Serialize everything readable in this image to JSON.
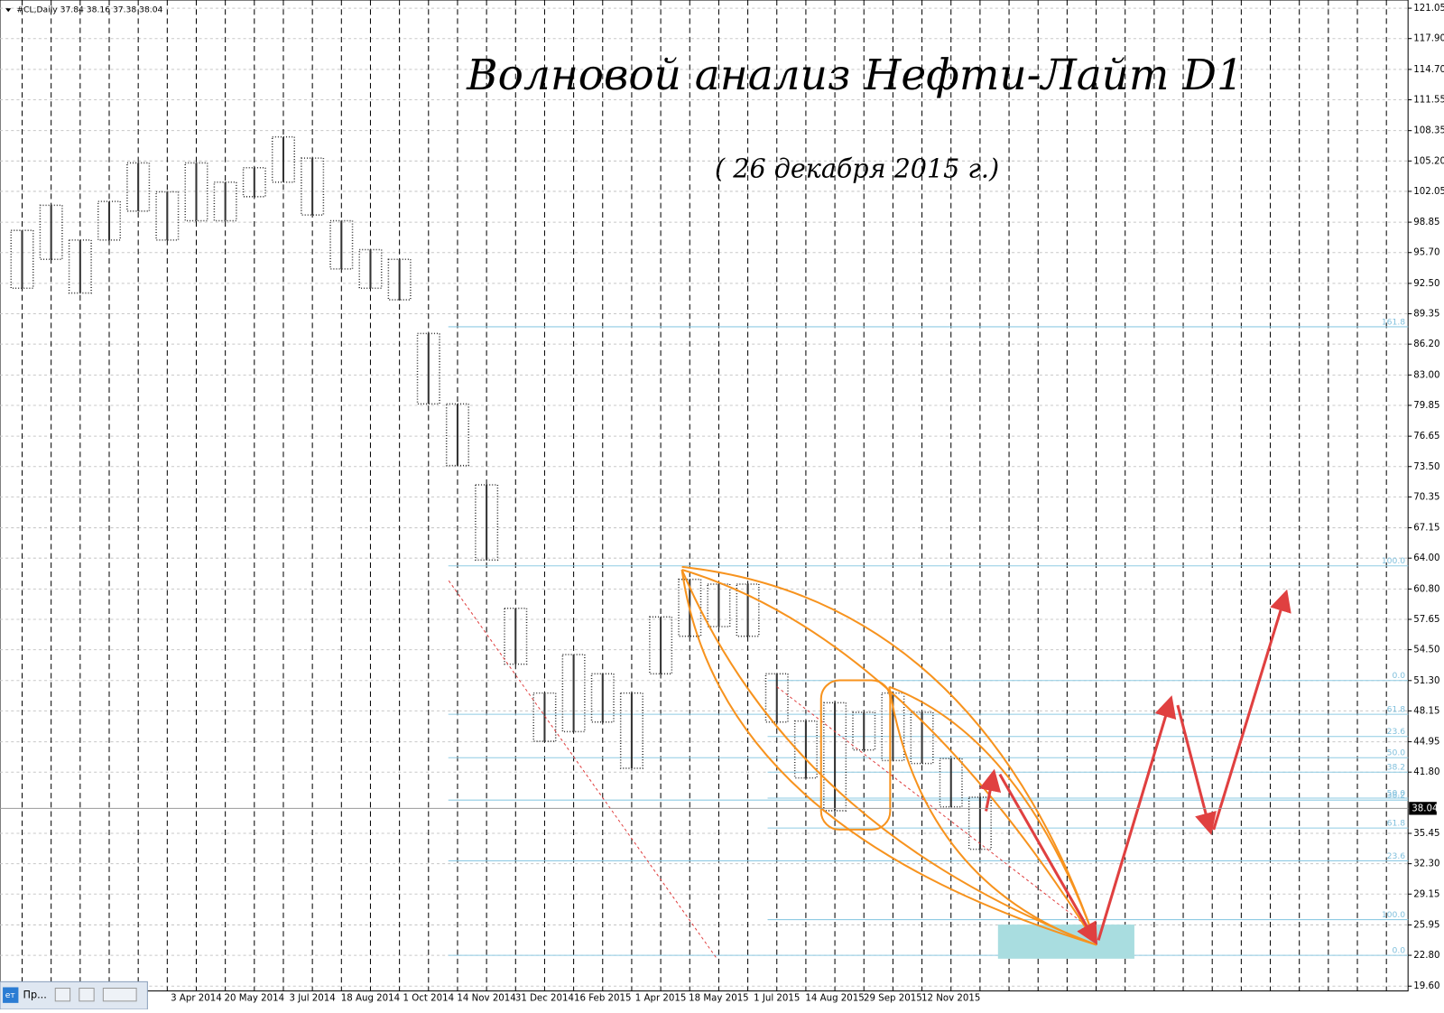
{
  "chart_data": {
    "type": "ohlc",
    "header": "#CL,Daily  37.84 38.16 37.38 38.04",
    "title": "Волновой анализ Нефти-Лайт D1",
    "subtitle": "( 26 декабря 2015 г.)",
    "categories": [
      null,
      null,
      null,
      null,
      null,
      null,
      "3 Apr 2014",
      null,
      "20 May 2014",
      null,
      "3 Jul 2014",
      null,
      "18 Aug 2014",
      null,
      "1 Oct 2014",
      null,
      "14 Nov 2014",
      null,
      "31 Dec 2014",
      null,
      "16 Feb 2015",
      null,
      "1 Apr 2015",
      null,
      "18 May 2015",
      null,
      "1 Jul 2015",
      null,
      "14 Aug 2015",
      null,
      "29 Sep 2015",
      null,
      "12 Nov 2015",
      null,
      null,
      null,
      null,
      null,
      null,
      null,
      null,
      null,
      null,
      null,
      null,
      null,
      null,
      null
    ],
    "series": [
      {
        "name": "high",
        "color": "#333333",
        "values": [
          98,
          100.6,
          97,
          101,
          105,
          102,
          105,
          103,
          104.5,
          107.7,
          105.5,
          99,
          96,
          95,
          87.3,
          80,
          71.6,
          58.8,
          50,
          54,
          52,
          50,
          57.9,
          61.8,
          61.3,
          61.3,
          52,
          47.1,
          49,
          48,
          50,
          48,
          43.2,
          39.2,
          null,
          null,
          null,
          null,
          null,
          null,
          null,
          null,
          null,
          null,
          null,
          null,
          null,
          null
        ]
      },
      {
        "name": "low",
        "color": "#333333",
        "values": [
          92,
          95,
          91.5,
          97,
          100,
          97,
          99,
          99,
          101.5,
          103,
          99.6,
          94,
          92,
          90.8,
          80,
          73.6,
          63.8,
          53,
          45,
          46,
          47,
          42.2,
          52,
          55.9,
          56.9,
          55.9,
          47,
          41.2,
          37.8,
          44.1,
          43,
          42.7,
          38.2,
          33.8,
          null,
          null,
          null,
          null,
          null,
          null,
          null,
          null,
          null,
          null,
          null,
          null,
          null,
          null
        ]
      }
    ],
    "last_price": 38.04,
    "last_price_label": "38.04",
    "fib_sets": [
      {
        "from_index": 15,
        "levels": [
          {
            "value": 88.0,
            "label": "161.8"
          },
          {
            "value": 63.2,
            "label": "100.0"
          },
          {
            "value": 47.8,
            "label": "61.8"
          },
          {
            "value": 43.3,
            "label": "50.0"
          },
          {
            "value": 38.9,
            "label": "38.2"
          },
          {
            "value": 32.6,
            "label": "23.6"
          },
          {
            "value": 22.8,
            "label": "0.0"
          }
        ]
      },
      {
        "from_index": 26,
        "levels": [
          {
            "value": 51.3,
            "label": "0.0"
          },
          {
            "value": 45.5,
            "label": "23.6"
          },
          {
            "value": 41.8,
            "label": "38.2"
          },
          {
            "value": 39.1,
            "label": "50.0"
          },
          {
            "value": 36.0,
            "label": "61.8"
          },
          {
            "value": 26.5,
            "label": "100.0"
          }
        ]
      }
    ],
    "ylim": [
      19.1,
      121.9
    ],
    "yticks": [
      {
        "value": 19.6,
        "label": "19.60"
      },
      {
        "value": 22.8,
        "label": "22.80"
      },
      {
        "value": 25.95,
        "label": "25.95"
      },
      {
        "value": 29.15,
        "label": "29.15"
      },
      {
        "value": 32.3,
        "label": "32.30"
      },
      {
        "value": 35.45,
        "label": "35.45"
      },
      {
        "value": 41.8,
        "label": "41.80"
      },
      {
        "value": 44.95,
        "label": "44.95"
      },
      {
        "value": 48.15,
        "label": "48.15"
      },
      {
        "value": 51.3,
        "label": "51.30"
      },
      {
        "value": 54.5,
        "label": "54.50"
      },
      {
        "value": 57.65,
        "label": "57.65"
      },
      {
        "value": 60.8,
        "label": "60.80"
      },
      {
        "value": 64,
        "label": "64.00"
      },
      {
        "value": 67.15,
        "label": "67.15"
      },
      {
        "value": 70.35,
        "label": "70.35"
      },
      {
        "value": 73.5,
        "label": "73.50"
      },
      {
        "value": 76.65,
        "label": "76.65"
      },
      {
        "value": 79.85,
        "label": "79.85"
      },
      {
        "value": 83,
        "label": "83.00"
      },
      {
        "value": 86.2,
        "label": "86.20"
      },
      {
        "value": 89.35,
        "label": "89.35"
      },
      {
        "value": 92.5,
        "label": "92.50"
      },
      {
        "value": 95.7,
        "label": "95.70"
      },
      {
        "value": 98.85,
        "label": "98.85"
      },
      {
        "value": 102.05,
        "label": "102.05"
      },
      {
        "value": 105.2,
        "label": "105.20"
      },
      {
        "value": 108.35,
        "label": "108.35"
      },
      {
        "value": 111.55,
        "label": "111.55"
      },
      {
        "value": 114.7,
        "label": "114.70"
      },
      {
        "value": 117.9,
        "label": "117.90"
      },
      {
        "value": 121.05,
        "label": "121.05"
      }
    ],
    "grid": true
  },
  "taskbar": {
    "icon": "ет",
    "label": "Пр..."
  }
}
